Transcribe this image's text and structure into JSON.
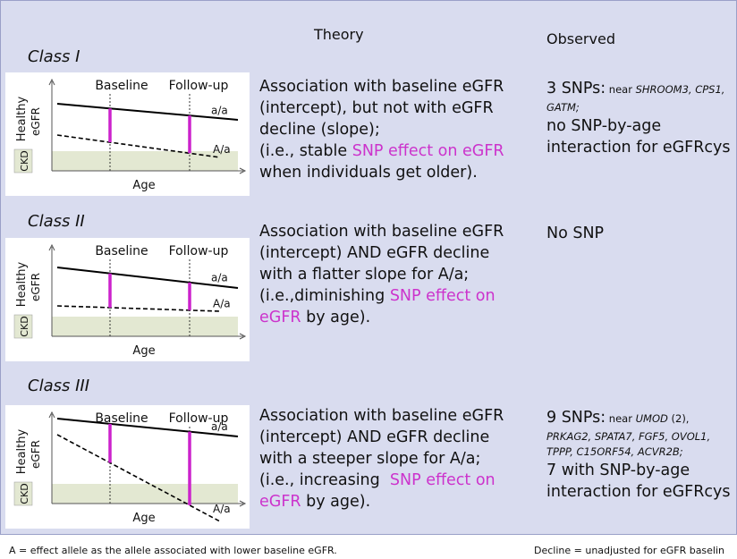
{
  "header": {
    "theory": "Theory",
    "observed": "Observed"
  },
  "classes": [
    {
      "label": "Class I",
      "diagram": {
        "baseline": "Baseline",
        "follow_up": "Follow-up",
        "healthy": "Healthy",
        "egfr": "eGFR",
        "ckd": "CKD",
        "age": "Age",
        "upper_line": "a/a",
        "lower_line": "A/a"
      },
      "theory": [
        [
          {
            "text": "Association with baseline eGFR"
          }
        ],
        [
          {
            "text": "(intercept), but not with eGFR"
          }
        ],
        [
          {
            "text": "decline (slope);"
          }
        ],
        [
          {
            "text": "(i.e., stable "
          },
          {
            "text": "SNP effect on eGFR",
            "color": "#cc33cc"
          }
        ],
        [
          {
            "text": "when individuals get older)."
          }
        ]
      ],
      "observed": [
        [
          {
            "text": "3 SNPs:"
          },
          {
            "text": " near ",
            "small": true
          },
          {
            "text": "SHROOM3, CPS1,",
            "small": true,
            "italic": true
          }
        ],
        [
          {
            "text": "GATM;",
            "small": true,
            "italic": true
          }
        ],
        [
          {
            "text": "no SNP-by-age"
          }
        ],
        [
          {
            "text": "interaction for eGFRcys"
          }
        ]
      ]
    },
    {
      "label": "Class II",
      "diagram": {
        "baseline": "Baseline",
        "follow_up": "Follow-up",
        "healthy": "Healthy",
        "egfr": "eGFR",
        "ckd": "CKD",
        "age": "Age",
        "upper_line": "a/a",
        "lower_line": "A/a"
      },
      "theory": [
        [
          {
            "text": "Association with baseline eGFR"
          }
        ],
        [
          {
            "text": "(intercept) AND eGFR decline"
          }
        ],
        [
          {
            "text": "with a flatter slope for A/a;"
          }
        ],
        [
          {
            "text": "(i.e.,diminishing "
          },
          {
            "text": "SNP effect on",
            "color": "#cc33cc"
          }
        ],
        [
          {
            "text": "eGFR",
            "color": "#cc33cc"
          },
          {
            "text": " by age)."
          }
        ]
      ],
      "observed": [
        [
          {
            "text": "No SNP"
          }
        ]
      ]
    },
    {
      "label": "Class III",
      "diagram": {
        "baseline": "Baseline",
        "follow_up": "Follow-up",
        "healthy": "Healthy",
        "egfr": "eGFR",
        "ckd": "CKD",
        "age": "Age",
        "upper_line": "a/a",
        "lower_line": "A/a"
      },
      "theory": [
        [
          {
            "text": "Association with baseline eGFR"
          }
        ],
        [
          {
            "text": "(intercept) AND eGFR decline"
          }
        ],
        [
          {
            "text": "with a steeper slope for A/a;"
          }
        ],
        [
          {
            "text": "(i.e., increasing  "
          },
          {
            "text": "SNP effect on",
            "color": "#cc33cc"
          }
        ],
        [
          {
            "text": "eGFR",
            "color": "#cc33cc"
          },
          {
            "text": " by age)."
          }
        ]
      ],
      "observed": [
        [
          {
            "text": "9 SNPs:"
          },
          {
            "text": " near ",
            "small": true
          },
          {
            "text": "UMOD",
            "small": true,
            "italic": true
          },
          {
            "text": " (2),",
            "small": true
          }
        ],
        [
          {
            "text": "PRKAG2, SPATA7, FGF5, OVOL1,",
            "small": true,
            "italic": true
          }
        ],
        [
          {
            "text": "TPPP, C15ORF54, ACVR2B;",
            "small": true,
            "italic": true
          }
        ],
        [
          {
            "text": "7 with SNP-by-age"
          }
        ],
        [
          {
            "text": "interaction for eGFRcys"
          }
        ]
      ]
    }
  ],
  "footer": {
    "left": "A = effect allele as the allele associated with lower baseline eGFR.",
    "right": "Decline = unadjusted for eGFR baselin"
  }
}
